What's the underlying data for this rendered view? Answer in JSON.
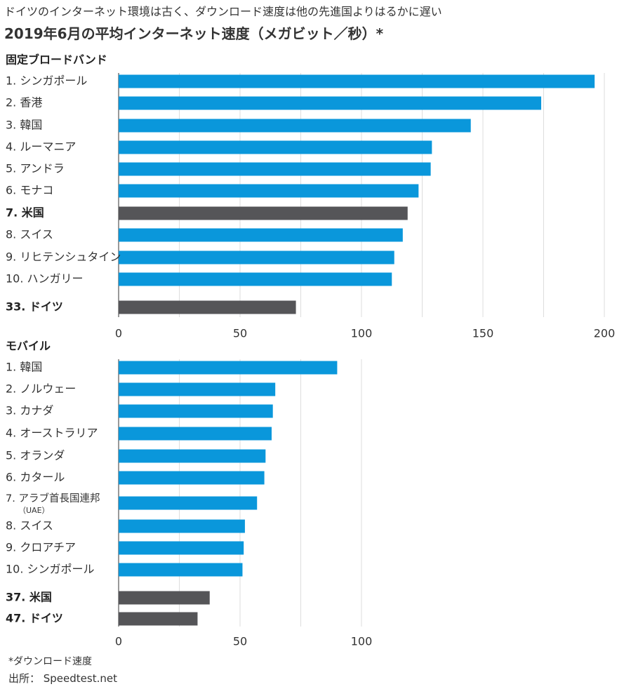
{
  "header": {
    "subtitle": "ドイツのインターネット環境は古く、ダウンロード速度は他の先進国よりはるかに遅い",
    "title": "2019年6月の平均インターネット速度（メガビット／秒）*"
  },
  "colors": {
    "bar": "#0a97db",
    "highlight": "#555558",
    "grid": "#dddddd",
    "axis": "#333333"
  },
  "chart_data": [
    {
      "type": "bar",
      "orientation": "horizontal",
      "title": "固定ブロードバンド",
      "xlim": [
        0,
        200
      ],
      "xticks": [
        "0",
        "50",
        "100",
        "150",
        "200"
      ],
      "grid": true,
      "categories": [
        "1. シンガポール",
        "2. 香港",
        "3. 韓国",
        "4. ルーマニア",
        "5. アンドラ",
        "6. モナコ",
        "7. 米国",
        "8. スイス",
        "9. リヒテンシュタイン",
        "10. ハンガリー",
        "33. ドイツ"
      ],
      "values": [
        196.0,
        174.0,
        145.0,
        129.0,
        128.5,
        123.5,
        119.0,
        117.0,
        113.5,
        112.5,
        73.0
      ],
      "highlighted": [
        "7. 米国",
        "33. ドイツ"
      ]
    },
    {
      "type": "bar",
      "orientation": "horizontal",
      "title": "モバイル",
      "xlim": [
        0,
        100
      ],
      "xticks": [
        "0",
        "50",
        "100"
      ],
      "grid": true,
      "categories": [
        "1. 韓国",
        "2. ノルウェー",
        "3. カナダ",
        "4. オーストラリア",
        "5. オランダ",
        "6. カタール",
        "7. アラブ首長国連邦",
        "8. スイス",
        "9. クロアチア",
        "10. シンガポール",
        "37. 米国",
        "47. ドイツ"
      ],
      "category_notes": {
        "7. アラブ首長国連邦": "（UAE）"
      },
      "values": [
        90.0,
        64.5,
        63.5,
        63.0,
        60.5,
        60.0,
        57.0,
        52.0,
        51.5,
        51.0,
        37.5,
        32.5
      ],
      "highlighted": [
        "37. 米国",
        "47. ドイツ"
      ]
    }
  ],
  "footer": {
    "note": "*ダウンロード速度",
    "source": "出所： Speedtest.net"
  }
}
